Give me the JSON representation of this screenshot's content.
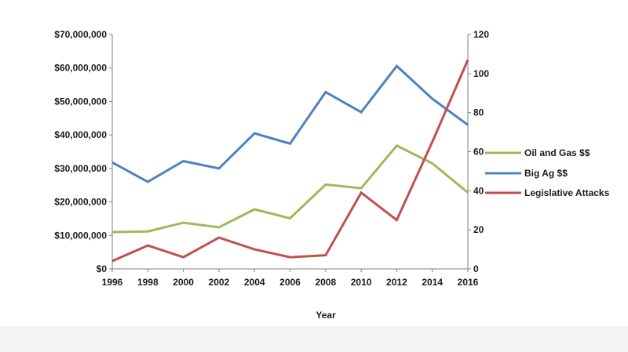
{
  "chart_data": {
    "type": "line",
    "title": "",
    "xlabel": "Year",
    "ylabel": "",
    "y2label": "",
    "x": [
      1996,
      1998,
      2000,
      2002,
      2004,
      2006,
      2008,
      2010,
      2012,
      2014,
      2016
    ],
    "x_tick_labels": [
      "1996",
      "1998",
      "2000",
      "2002",
      "2004",
      "2006",
      "2008",
      "2010",
      "2012",
      "2014",
      "2016"
    ],
    "ylim": [
      0,
      70000000
    ],
    "y_tick_labels": [
      "$0",
      "$10,000,000",
      "$20,000,000",
      "$30,000,000",
      "$40,000,000",
      "$50,000,000",
      "$60,000,000",
      "$70,000,000"
    ],
    "y2lim": [
      0,
      120
    ],
    "y2_tick_labels": [
      "0",
      "20",
      "40",
      "60",
      "80",
      "100",
      "120"
    ],
    "grid": false,
    "legend_position": "right",
    "series": [
      {
        "name": "Oil and Gas $$",
        "axis": "left",
        "color": "#9bbb59",
        "values": [
          11000000,
          11200000,
          13800000,
          12400000,
          17800000,
          15100000,
          25200000,
          24100000,
          36800000,
          31500000,
          22800000
        ]
      },
      {
        "name": "Big Ag $$",
        "axis": "left",
        "color": "#4f81bd",
        "values": [
          31800000,
          26000000,
          32200000,
          30000000,
          40500000,
          37400000,
          52800000,
          46800000,
          60600000,
          50800000,
          43000000
        ]
      },
      {
        "name": "Legislative Attacks",
        "axis": "right",
        "color": "#c0504d",
        "values": [
          4,
          12,
          6,
          16,
          10,
          6,
          7,
          39,
          25,
          65,
          107
        ]
      }
    ]
  }
}
